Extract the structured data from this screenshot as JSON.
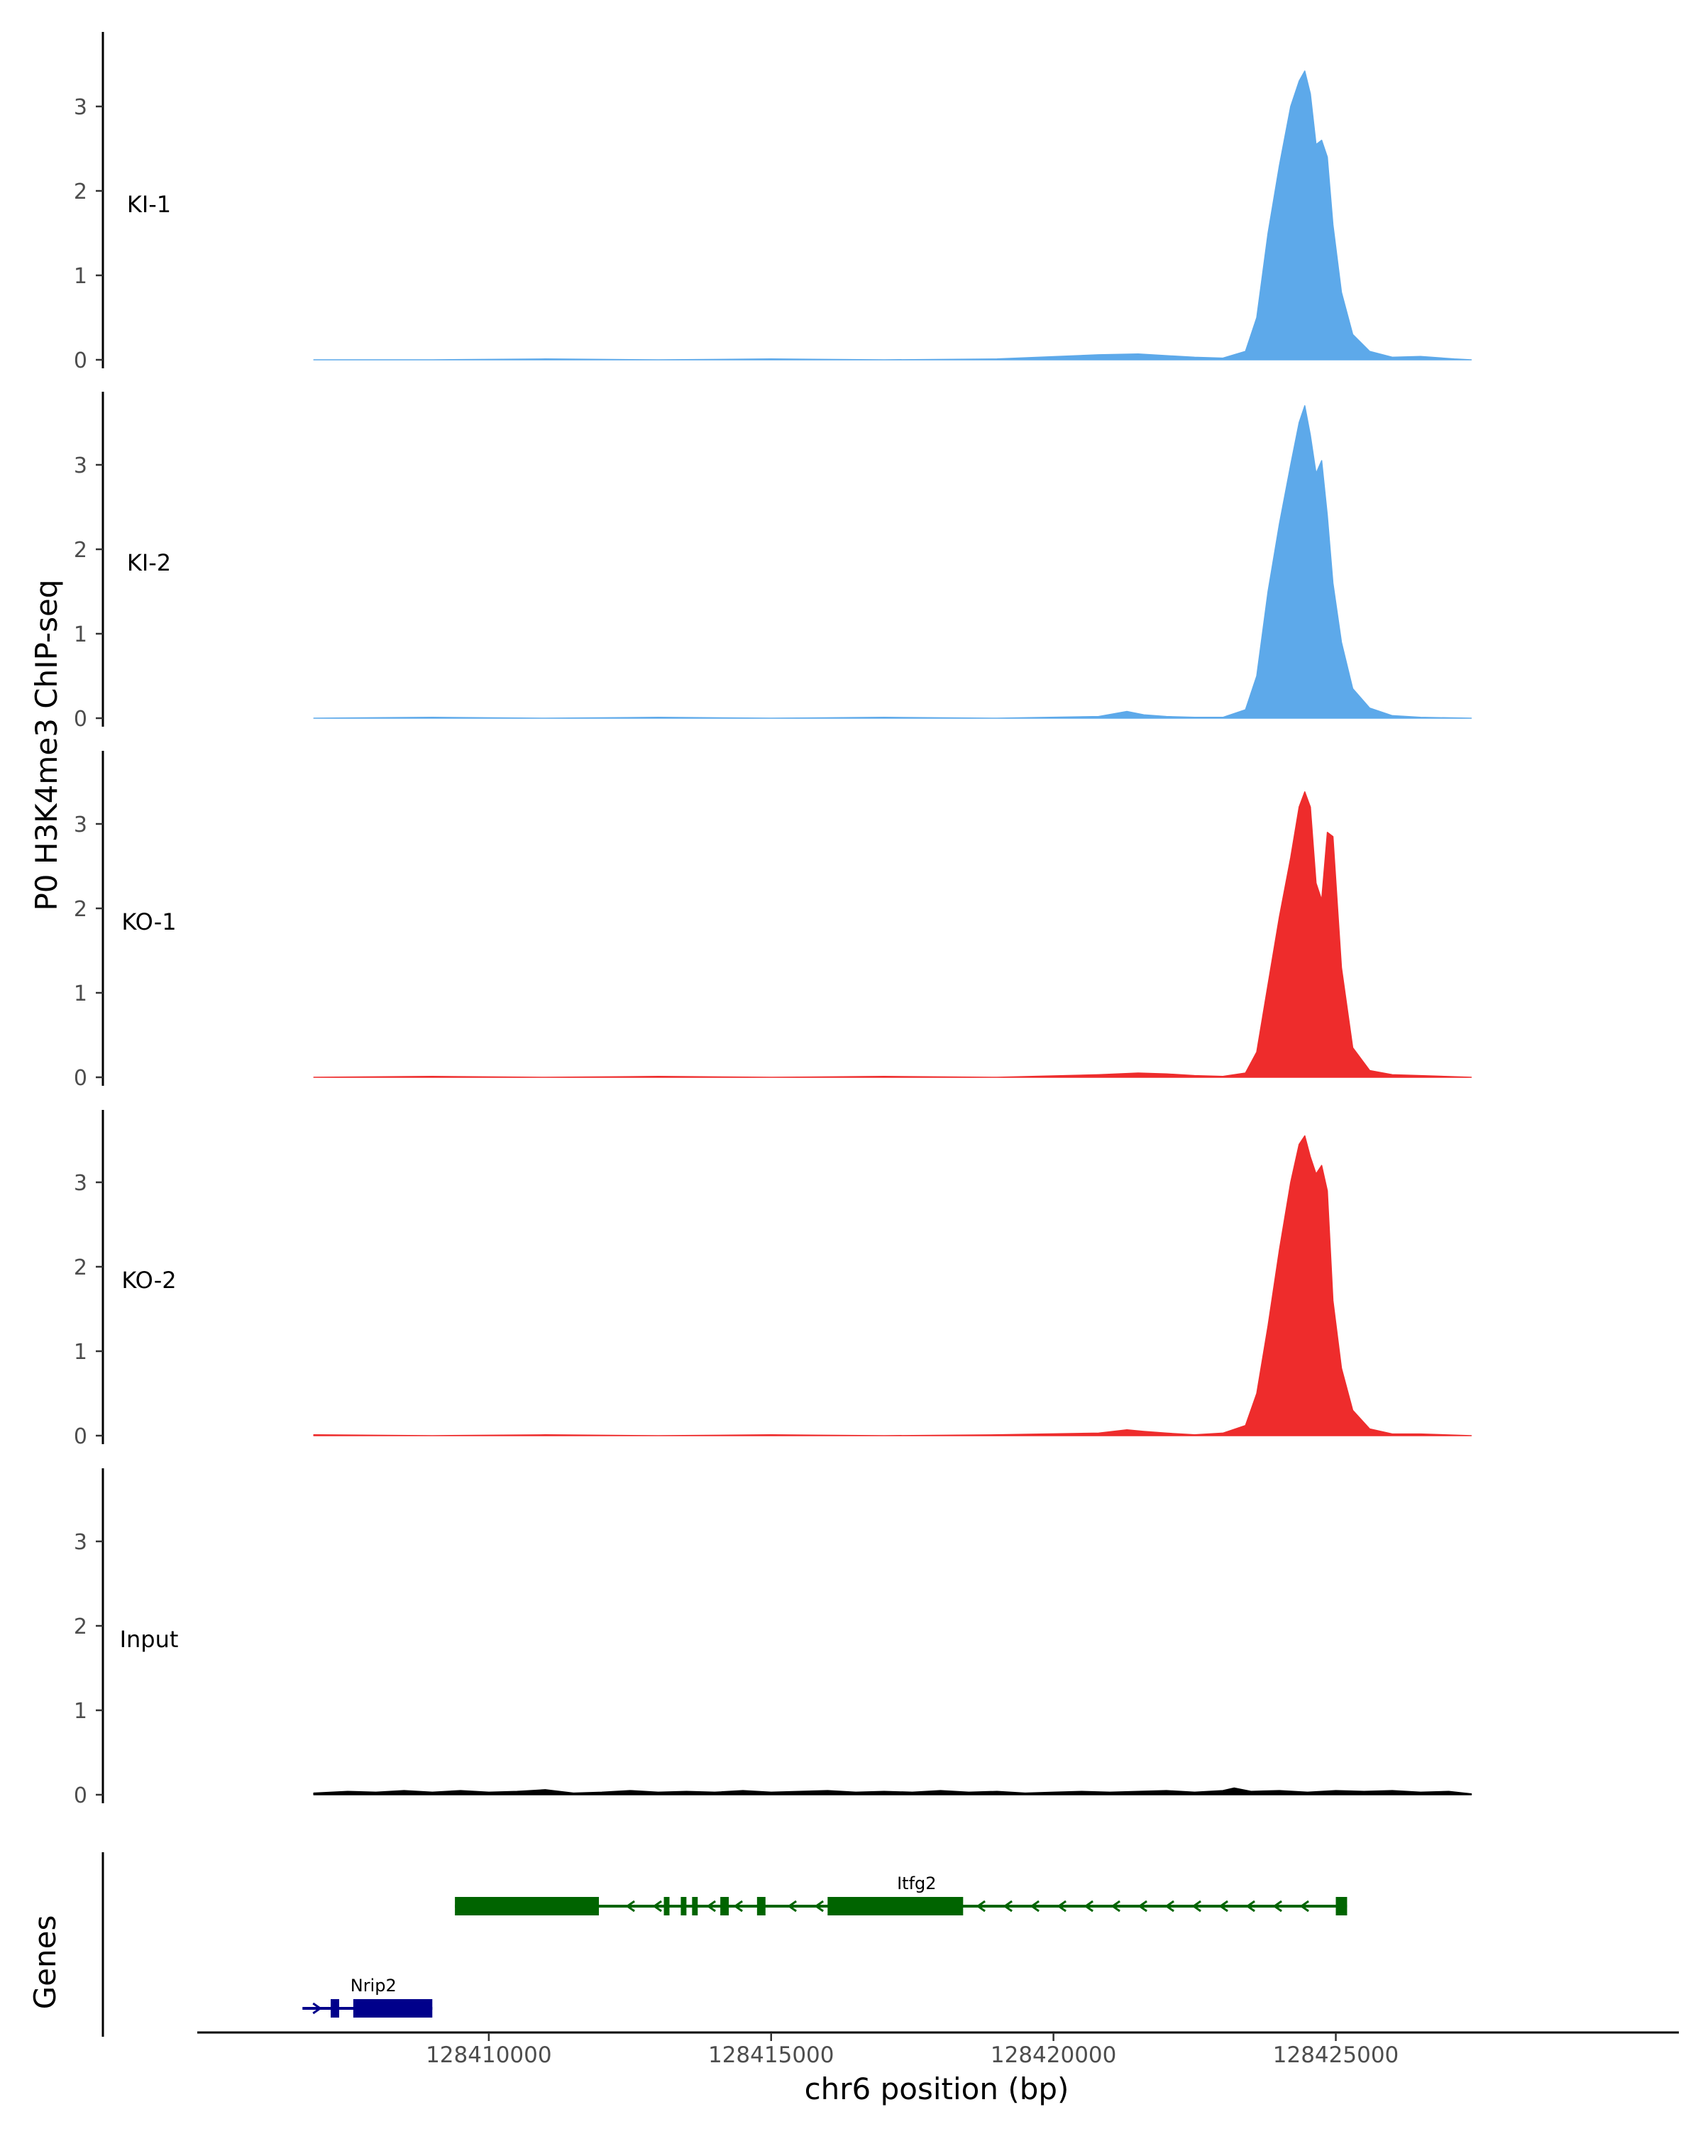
{
  "chart_data": {
    "type": "area",
    "ylabel": "P0 H3K4me3 ChIP-seq",
    "xlabel": "chr6 position (bp)",
    "xlim": [
      128404900,
      128431000
    ],
    "ylim": [
      0,
      3.9
    ],
    "y_ticks": [
      "0",
      "1",
      "2",
      "3"
    ],
    "x_ticks": [
      {
        "value": 128410000,
        "label": "128410000"
      },
      {
        "value": 128415000,
        "label": "128415000"
      },
      {
        "value": 128420000,
        "label": "128420000"
      },
      {
        "value": 128425000,
        "label": "128425000"
      }
    ],
    "tracks": [
      {
        "name": "KI-1",
        "color": "#5DA9EA",
        "x": [
          128406900,
          128409000,
          128411000,
          128413000,
          128415000,
          128417000,
          128419000,
          128420800,
          128421500,
          128422000,
          128422500,
          128423000,
          128423400,
          128423600,
          128423800,
          128424000,
          128424200,
          128424350,
          128424450,
          128424550,
          128424650,
          128424750,
          128424850,
          128424950,
          128425100,
          128425300,
          128425600,
          128426000,
          128426500,
          128427100,
          128427400
        ],
        "y": [
          0.0,
          0.0,
          0.01,
          0.0,
          0.01,
          0.0,
          0.01,
          0.06,
          0.07,
          0.05,
          0.03,
          0.02,
          0.1,
          0.5,
          1.5,
          2.3,
          3.0,
          3.3,
          3.42,
          3.15,
          2.55,
          2.6,
          2.4,
          1.6,
          0.8,
          0.3,
          0.1,
          0.03,
          0.04,
          0.01,
          0.0
        ]
      },
      {
        "name": "KI-2",
        "color": "#5DA9EA",
        "x": [
          128406900,
          128409000,
          128411000,
          128413000,
          128415000,
          128417000,
          128419000,
          128420800,
          128421300,
          128421600,
          128422000,
          128422500,
          128423000,
          128423400,
          128423600,
          128423800,
          128424000,
          128424200,
          128424350,
          128424450,
          128424550,
          128424650,
          128424750,
          128424850,
          128424950,
          128425100,
          128425300,
          128425600,
          128426000,
          128426500,
          128427400
        ],
        "y": [
          0.0,
          0.01,
          0.0,
          0.01,
          0.0,
          0.01,
          0.0,
          0.02,
          0.08,
          0.04,
          0.02,
          0.01,
          0.01,
          0.1,
          0.5,
          1.5,
          2.3,
          3.0,
          3.5,
          3.7,
          3.35,
          2.9,
          3.05,
          2.4,
          1.6,
          0.9,
          0.35,
          0.12,
          0.03,
          0.01,
          0.0
        ]
      },
      {
        "name": "KO-1",
        "color": "#EE2C2C",
        "x": [
          128406900,
          128409000,
          128411000,
          128413000,
          128415000,
          128417000,
          128419000,
          128420800,
          128421500,
          128422000,
          128422500,
          128423000,
          128423400,
          128423600,
          128423800,
          128424000,
          128424200,
          128424350,
          128424450,
          128424550,
          128424650,
          128424750,
          128424850,
          128424950,
          128425100,
          128425300,
          128425600,
          128426000,
          128426500,
          128427400
        ],
        "y": [
          0.0,
          0.01,
          0.0,
          0.01,
          0.0,
          0.01,
          0.0,
          0.03,
          0.05,
          0.04,
          0.02,
          0.01,
          0.05,
          0.3,
          1.1,
          1.9,
          2.6,
          3.2,
          3.38,
          3.2,
          2.3,
          2.1,
          2.9,
          2.85,
          1.3,
          0.35,
          0.08,
          0.03,
          0.02,
          0.0
        ]
      },
      {
        "name": "KO-2",
        "color": "#EE2C2C",
        "x": [
          128406900,
          128409000,
          128411000,
          128413000,
          128415000,
          128417000,
          128419000,
          128420800,
          128421300,
          128421600,
          128422000,
          128422500,
          128423000,
          128423400,
          128423600,
          128423800,
          128424000,
          128424200,
          128424350,
          128424450,
          128424550,
          128424650,
          128424750,
          128424850,
          128424950,
          128425100,
          128425300,
          128425600,
          128426000,
          128426500,
          128427400
        ],
        "y": [
          0.01,
          0.0,
          0.01,
          0.0,
          0.01,
          0.0,
          0.01,
          0.03,
          0.07,
          0.05,
          0.03,
          0.01,
          0.03,
          0.12,
          0.5,
          1.3,
          2.2,
          3.0,
          3.45,
          3.55,
          3.3,
          3.1,
          3.2,
          2.9,
          1.6,
          0.8,
          0.3,
          0.08,
          0.02,
          0.02,
          0.0
        ]
      },
      {
        "name": "Input",
        "color": "#000000",
        "x": [
          128406900,
          128407500,
          128408000,
          128408500,
          128409000,
          128409500,
          128410000,
          128410500,
          128411000,
          128411500,
          128412000,
          128412500,
          128413000,
          128413500,
          128414000,
          128414500,
          128415000,
          128415500,
          128416000,
          128416500,
          128417000,
          128417500,
          128418000,
          128418500,
          128419000,
          128419500,
          128420000,
          128420500,
          128421000,
          128421500,
          128422000,
          128422500,
          128423000,
          128423200,
          128423500,
          128424000,
          128424500,
          128425000,
          128425500,
          128426000,
          128426500,
          128427000,
          128427400
        ],
        "y": [
          0.02,
          0.04,
          0.03,
          0.05,
          0.03,
          0.05,
          0.03,
          0.04,
          0.06,
          0.02,
          0.03,
          0.05,
          0.03,
          0.04,
          0.03,
          0.05,
          0.03,
          0.04,
          0.05,
          0.03,
          0.04,
          0.03,
          0.05,
          0.03,
          0.04,
          0.02,
          0.03,
          0.04,
          0.03,
          0.04,
          0.05,
          0.03,
          0.05,
          0.08,
          0.04,
          0.05,
          0.03,
          0.05,
          0.04,
          0.05,
          0.03,
          0.04,
          0.01
        ]
      }
    ],
    "genes": [
      {
        "name": "Itfg2",
        "color": "#006400",
        "start": 128409400,
        "end": 128425200,
        "strand": "-",
        "exons": [
          [
            128409400,
            128411950
          ],
          [
            128413100,
            128413200
          ],
          [
            128413400,
            128413500
          ],
          [
            128413600,
            128413700
          ],
          [
            128414100,
            128414250
          ],
          [
            128414750,
            128414900
          ],
          [
            128416000,
            128418400
          ],
          [
            128425000,
            128425200
          ]
        ]
      },
      {
        "name": "Nrip2",
        "color": "#00008B",
        "start": 128406700,
        "end": 128409000,
        "strand": "+",
        "exons": [
          [
            128407200,
            128407350
          ],
          [
            128407600,
            128409000
          ]
        ]
      }
    ],
    "genes_panel_label": "Genes",
    "legend": "none",
    "grid": false
  }
}
